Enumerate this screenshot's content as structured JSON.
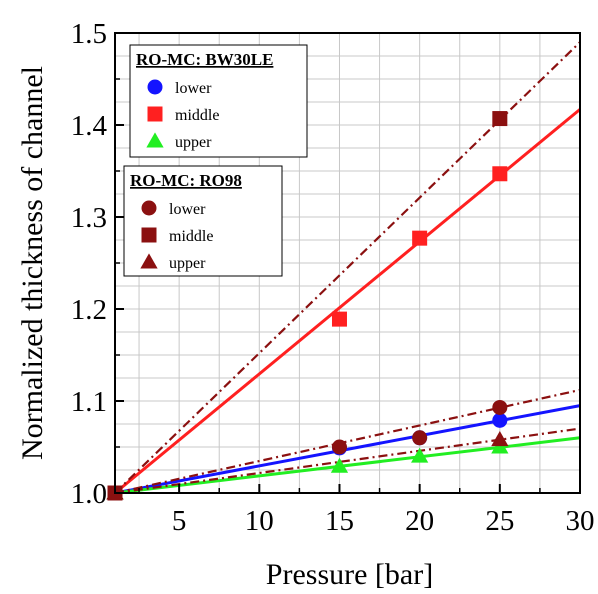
{
  "chart_data": {
    "type": "scatter",
    "xlabel": "Pressure [bar]",
    "ylabel": "Normalized thickness of channel",
    "xlim": [
      1,
      30
    ],
    "ylim": [
      1.0,
      1.5
    ],
    "xticks": [
      5,
      10,
      15,
      20,
      25,
      30
    ],
    "yticks": [
      1.0,
      1.1,
      1.2,
      1.3,
      1.4,
      1.5
    ],
    "xtick_labels": [
      "5",
      "10",
      "15",
      "20",
      "25",
      "30"
    ],
    "ytick_labels": [
      "1.0",
      "1.1",
      "1.2",
      "1.3",
      "1.4",
      "1.5"
    ],
    "grid": true,
    "legend_position": "top-left",
    "legend_groups": [
      {
        "title": "RO-MC: BW30LE",
        "entries": [
          {
            "label": "lower",
            "marker": "circle",
            "color": "#1414ff"
          },
          {
            "label": "middle",
            "marker": "square",
            "color": "#ff2020"
          },
          {
            "label": "upper",
            "marker": "triangle",
            "color": "#22ee22"
          }
        ]
      },
      {
        "title": "RO-MC: RO98",
        "entries": [
          {
            "label": "lower",
            "marker": "circle",
            "color": "#8b1010"
          },
          {
            "label": "middle",
            "marker": "square",
            "color": "#8b1010"
          },
          {
            "label": "upper",
            "marker": "triangle",
            "color": "#8b1010"
          }
        ]
      }
    ],
    "series": [
      {
        "group": "RO-MC: RO98",
        "name": "lower",
        "marker": "circle",
        "color": "#8b1010",
        "line": "dashdot",
        "x": [
          1,
          15,
          20,
          25
        ],
        "y": [
          1.0,
          1.05,
          1.06,
          1.093
        ],
        "fit_end": 1.112
      },
      {
        "group": "RO-MC: RO98",
        "name": "middle",
        "marker": "square",
        "color": "#8b1010",
        "line": "dashdot",
        "x": [
          1,
          25
        ],
        "y": [
          1.0,
          1.407
        ],
        "fit_end": 1.49
      },
      {
        "group": "RO-MC: RO98",
        "name": "upper",
        "marker": "triangle",
        "color": "#8b1010",
        "line": "dashdot",
        "x": [
          1,
          25
        ],
        "y": [
          1.0,
          1.058
        ],
        "fit_end": 1.07
      },
      {
        "group": "RO-MC: BW30LE",
        "name": "lower",
        "marker": "circle",
        "color": "#1414ff",
        "line": "solid",
        "x": [
          1,
          15,
          20,
          25
        ],
        "y": [
          1.0,
          1.049,
          1.06,
          1.079
        ],
        "fit_end": 1.095
      },
      {
        "group": "RO-MC: BW30LE",
        "name": "middle",
        "marker": "square",
        "color": "#ff2020",
        "line": "solid",
        "x": [
          1,
          15,
          20,
          25
        ],
        "y": [
          1.0,
          1.189,
          1.277,
          1.347
        ],
        "fit_end": 1.417
      },
      {
        "group": "RO-MC: BW30LE",
        "name": "upper",
        "marker": "triangle",
        "color": "#22ee22",
        "line": "solid",
        "x": [
          1,
          15,
          20,
          25
        ],
        "y": [
          1.0,
          1.029,
          1.04,
          1.05
        ],
        "fit_end": 1.06
      }
    ]
  }
}
